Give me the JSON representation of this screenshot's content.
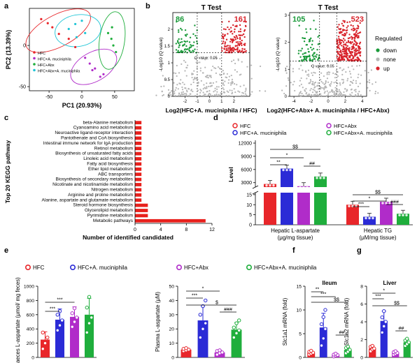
{
  "colors": {
    "hfc": "#e8262a",
    "akk": "#2b2bd6",
    "abx": "#b02cc9",
    "abx_akk": "#1fae3c",
    "down": "#1a9a3a",
    "none": "#b5b5b5",
    "up": "#d8222a",
    "black": "#000000"
  },
  "panel_labels": {
    "a": "a",
    "b": "b",
    "c": "c",
    "d": "d",
    "e": "e",
    "f": "f",
    "g": "g"
  },
  "legend_groups": [
    "HFC",
    "HFC+A. muciniphila",
    "HFC+Abx",
    "HFC+Abx+A. muciniphila"
  ],
  "chart_data": [
    {
      "id": "a",
      "type": "scatter",
      "xlabel": "PC1 (20.93%)",
      "ylabel": "PC2 (13.39%)",
      "xlim": [
        -80,
        80
      ],
      "ylim": [
        -55,
        45
      ],
      "xticks": [
        -50,
        0,
        50
      ],
      "yticks": [
        -50,
        0
      ],
      "legend": [
        "HFC",
        "HFC+A. muciniphila",
        "HFC+Abx",
        "HFC+Abx+A. muciniphila"
      ],
      "series": [
        {
          "name": "HFC",
          "color": "#e8262a",
          "points": [
            [
              -62,
              32
            ],
            [
              -45,
              22
            ],
            [
              -35,
              14
            ],
            [
              -20,
              8
            ],
            [
              -10,
              -2
            ],
            [
              -52,
              27
            ]
          ]
        },
        {
          "name": "HFC+A. muciniphila",
          "color": "#b02cc9",
          "points": [
            [
              5,
              -15
            ],
            [
              12,
              -22
            ],
            [
              20,
              -28
            ],
            [
              28,
              -38
            ],
            [
              33,
              -35
            ],
            [
              16,
              -30
            ]
          ]
        },
        {
          "name": "HFC+Abx",
          "color": "#1fae3c",
          "points": [
            [
              40,
              15
            ],
            [
              45,
              8
            ],
            [
              48,
              0
            ],
            [
              52,
              -8
            ],
            [
              46,
              22
            ]
          ]
        },
        {
          "name": "HFC+Abx+A. muciniphila",
          "color": "#1fc5d6",
          "points": [
            [
              -20,
              20
            ],
            [
              -10,
              26
            ],
            [
              0,
              30
            ],
            [
              5,
              15
            ],
            [
              -8,
              10
            ]
          ]
        }
      ]
    },
    {
      "id": "b1",
      "type": "scatter",
      "title": "T Test",
      "xlabel": "Log2(HFC+A. muciniphila / HFC)",
      "ylabel": "-Log10 (Q value)",
      "xlim": [
        -3,
        3.3
      ],
      "ylim": [
        0,
        2.5
      ],
      "xticks": [
        -2,
        -1,
        0,
        1,
        2
      ],
      "yticks": [
        0,
        0.5,
        1,
        1.5,
        2
      ],
      "threshold_label": "Q value: 0.05",
      "down_count": "86",
      "up_count": "161"
    },
    {
      "id": "b2",
      "type": "scatter",
      "title": "T Test",
      "xlabel": "Log2(HFC+Abx+ A. muciniphila / HFC+Abx)",
      "ylabel": "-Log10 (Q value)",
      "xlim": [
        -4.5,
        4.5
      ],
      "ylim": [
        0,
        3.1
      ],
      "xticks": [
        -4,
        -2,
        0,
        2,
        4
      ],
      "yticks": [
        0,
        1,
        2,
        3
      ],
      "threshold_label": "Q value: 0.05",
      "down_count": "105",
      "up_count": "523",
      "legend_title": "Regulated",
      "legend": [
        "down",
        "none",
        "up"
      ]
    },
    {
      "id": "c",
      "type": "bar",
      "orientation": "horizontal",
      "ylabel": "Top 20 KEGG pathway",
      "xlabel": "Number of identified candidated",
      "xlim": [
        0,
        12
      ],
      "xticks": [
        0,
        4,
        8,
        12
      ],
      "categories": [
        "beta-Alanine metabolism",
        "Cyanoamino acid metabolism",
        "Neuroactive ligand-receptor interaction",
        "Pantothenate and CoA biosynthesis",
        "Intestinal immune network for IgA production",
        "Retinol metabolism",
        "Biosynthesis of unsaturated fatty acids",
        "Linoleic acid metabolism",
        "Fatty acid biosynthesis",
        "Ether lipid metabolism",
        "ABC transporters",
        "Biosynthesis of secondary metabolites",
        "Nicotinate and nicotinamide metabolism",
        "Nitrogen metabolism",
        "Arginine and proline metabolism",
        "Alanine, aspartate and glutamate metabolism",
        "Steroid hormone biosynthesis",
        "Glycerolipid metabolism",
        "Pyrimidine metabolism",
        "Metabolic pathways"
      ],
      "values": [
        1,
        1,
        1,
        1,
        1,
        1,
        1,
        1,
        1,
        1,
        1,
        1,
        1,
        1,
        1,
        1,
        2,
        2,
        2,
        11
      ]
    },
    {
      "id": "d",
      "type": "bar",
      "ylabel": "Level",
      "legend": [
        "HFC",
        "HFC+A. muciniphila",
        "HFC+Abx",
        "HFC+Abx+A. muciniphila"
      ],
      "yticks": [
        "0",
        "5",
        "10",
        "15",
        "3000",
        "6000",
        "9000",
        "12000"
      ],
      "groups": [
        {
          "label": "Hepatic L-aspartate",
          "unit": "(μg/mg tissue)",
          "values": [
            2700,
            6200,
            2200,
            4400
          ],
          "sig": [
            {
              "text": "**",
              "a": 0,
              "b": 1
            },
            {
              "text": "*",
              "a": 0,
              "b": 2
            },
            {
              "text": "$$",
              "a": 0,
              "b": 3
            },
            {
              "text": "##",
              "a": 2,
              "b": 3
            }
          ]
        },
        {
          "label": "Hepatic TG",
          "unit": "(μM/mg tissue)",
          "values": [
            10,
            4,
            11.5,
            5.5
          ],
          "sig": [
            {
              "text": "***",
              "a": 0,
              "b": 1
            },
            {
              "text": "*",
              "a": 0,
              "b": 2
            },
            {
              "text": "$$",
              "a": 0,
              "b": 3
            },
            {
              "text": "###",
              "a": 2,
              "b": 3
            }
          ]
        }
      ]
    },
    {
      "id": "e1",
      "type": "bar",
      "ylabel": "Faeces L-aspartate (μmol/ mg feces)",
      "ylim": [
        0,
        1000
      ],
      "yticks": [
        0,
        200,
        400,
        600,
        800,
        1000
      ],
      "values": [
        250,
        530,
        570,
        600
      ],
      "errors": [
        110,
        150,
        140,
        230
      ],
      "points": [
        [
          120,
          200,
          280,
          350
        ],
        [
          380,
          450,
          520,
          600,
          650
        ],
        [
          430,
          500,
          560,
          620,
          690
        ],
        [
          350,
          480,
          560,
          700,
          850
        ]
      ],
      "sig": [
        {
          "text": "***",
          "a": 0,
          "b": 1
        },
        {
          "text": "***",
          "a": 0,
          "b": 2
        }
      ]
    },
    {
      "id": "e2",
      "type": "bar",
      "ylabel": "Plasma L-aspartate (μM)",
      "ylim": [
        0,
        50
      ],
      "yticks": [
        0,
        10,
        20,
        30,
        40,
        50
      ],
      "values": [
        5.5,
        26,
        3.5,
        19.5
      ],
      "errors": [
        1,
        10,
        1.5,
        5
      ],
      "points": [
        [
          4.5,
          5,
          5.5,
          6,
          6.5
        ],
        [
          14,
          20,
          24,
          30,
          36,
          40
        ],
        [
          2,
          3,
          3.5,
          4.5,
          5
        ],
        [
          14,
          17,
          19,
          21,
          24,
          26
        ]
      ],
      "sig": [
        {
          "text": "*",
          "a": 0,
          "b": 2
        },
        {
          "text": "***",
          "a": 0,
          "b": 1
        },
        {
          "text": "$",
          "a": 0,
          "b": 3
        },
        {
          "text": "###",
          "a": 2,
          "b": 3
        }
      ]
    },
    {
      "id": "f",
      "type": "bar",
      "title": "Ileum",
      "ylabel": "Slc1a1 mRNA (fold)",
      "ylim": [
        0,
        15
      ],
      "yticks": [
        0,
        5,
        10,
        15
      ],
      "values": [
        1,
        6.3,
        0.5,
        1.6
      ],
      "errors": [
        0.3,
        3,
        0.2,
        0.5
      ],
      "points": [
        [
          0.6,
          0.8,
          1,
          1.2,
          1.4
        ],
        [
          2.5,
          4,
          6,
          7,
          8.5,
          10
        ],
        [
          0.2,
          0.4,
          0.5,
          0.6,
          0.8
        ],
        [
          0.9,
          1.2,
          1.6,
          2,
          2.3
        ]
      ],
      "sig": [
        {
          "text": "**",
          "a": 0,
          "b": 1
        },
        {
          "text": "***",
          "a": 0,
          "b": 2
        },
        {
          "text": "$$",
          "a": 0,
          "b": 3
        },
        {
          "text": "##",
          "a": 2,
          "b": 3
        }
      ]
    },
    {
      "id": "g",
      "type": "bar",
      "title": "Liver",
      "ylabel": "Slc1a2 mRNA (fold)",
      "ylim": [
        0,
        8
      ],
      "yticks": [
        0,
        2,
        4,
        6,
        8
      ],
      "values": [
        1,
        4.1,
        0.5,
        1.7
      ],
      "errors": [
        0.3,
        1.1,
        0.2,
        0.3
      ],
      "points": [
        [
          0.7,
          0.9,
          1,
          1.2,
          1.3
        ],
        [
          2.8,
          3.5,
          4,
          4.5,
          5.2
        ],
        [
          0.3,
          0.4,
          0.5,
          0.6,
          0.7
        ],
        [
          1.3,
          1.5,
          1.7,
          1.9,
          2.1
        ]
      ],
      "sig": [
        {
          "text": "*",
          "a": 0,
          "b": 2
        },
        {
          "text": "***",
          "a": 0,
          "b": 1
        },
        {
          "text": "$$",
          "a": 0,
          "b": 3
        },
        {
          "text": "##",
          "a": 2,
          "b": 3
        }
      ]
    }
  ]
}
